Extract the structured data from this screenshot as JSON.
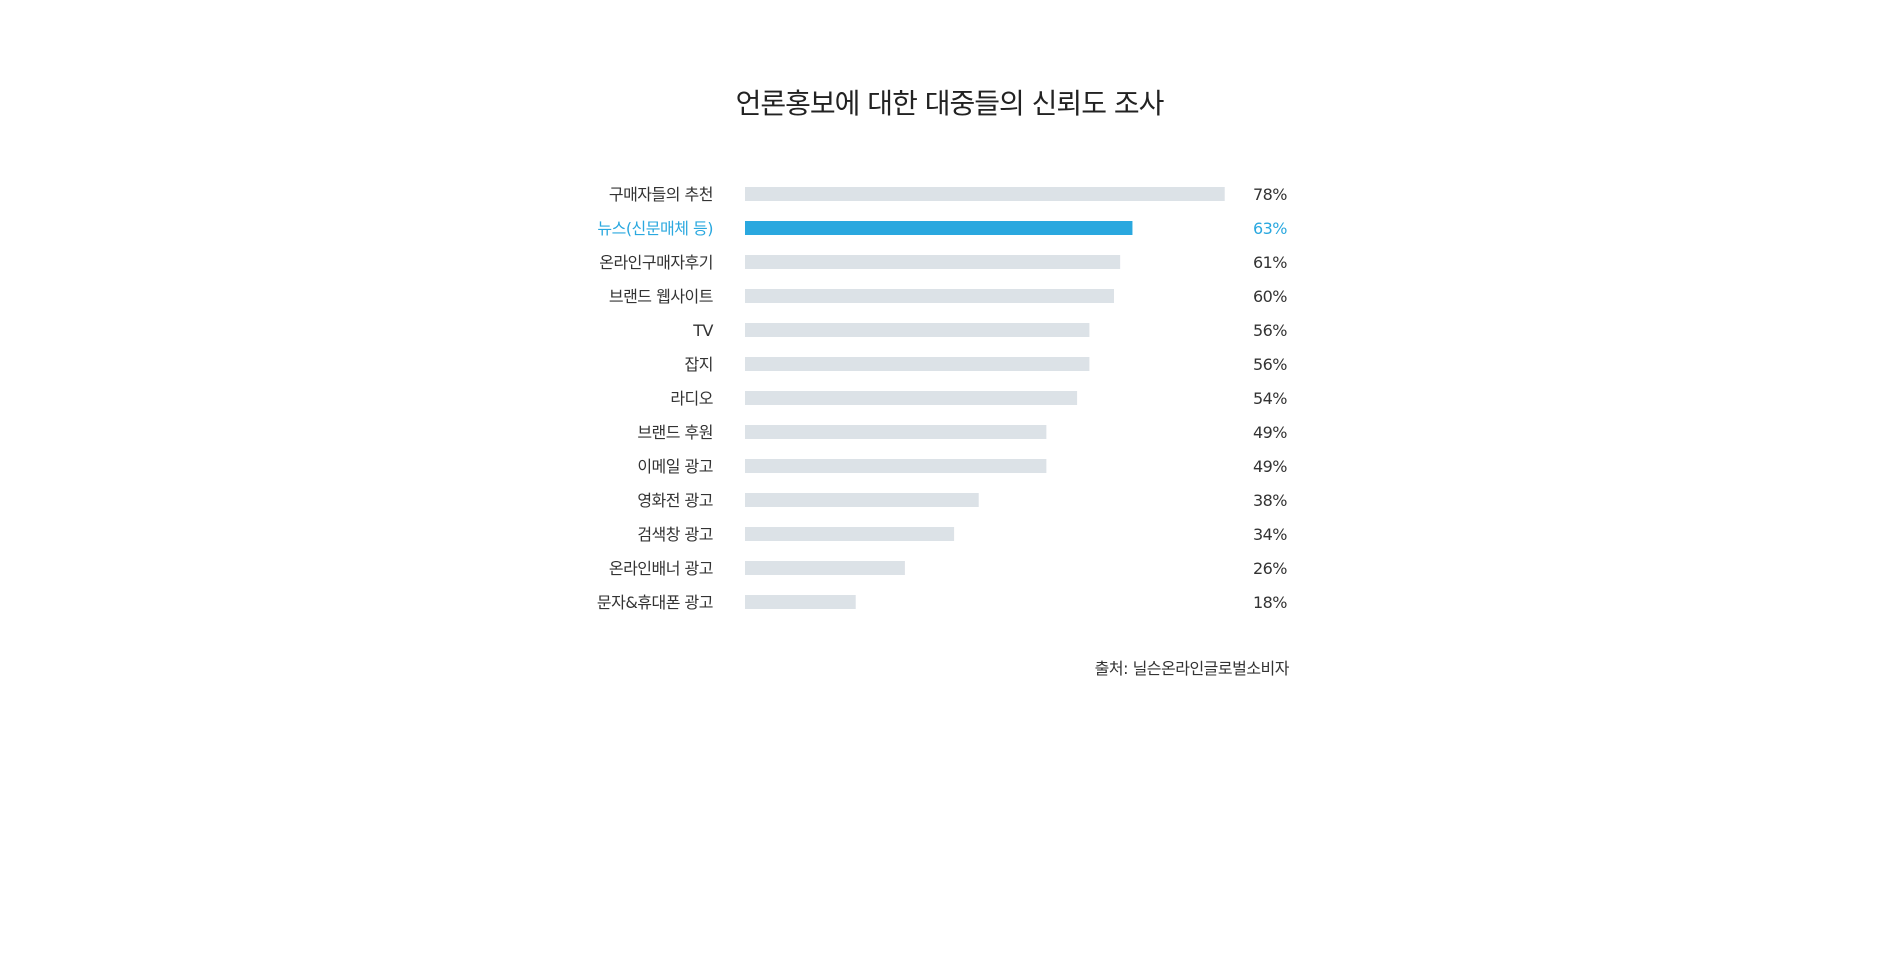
{
  "chart_data": {
    "type": "bar",
    "orientation": "horizontal",
    "title": "언론홍보에 대한 대중들의 신뢰도 조사",
    "categories": [
      "구매자들의 추천",
      "뉴스(신문매체 등)",
      "온라인구매자후기",
      "브랜드 웹사이트",
      "TV",
      "잡지",
      "라디오",
      "브랜드 후원",
      "이메일 광고",
      "영화전 광고",
      "검색창 광고",
      "온라인배너 광고",
      "문자&휴대폰 광고"
    ],
    "values": [
      78,
      63,
      61,
      60,
      56,
      56,
      54,
      49,
      49,
      38,
      34,
      26,
      18
    ],
    "value_labels": [
      "78%",
      "63%",
      "61%",
      "60%",
      "56%",
      "56%",
      "54%",
      "49%",
      "49%",
      "38%",
      "34%",
      "26%",
      "18%"
    ],
    "highlight_index": 1,
    "xlim": [
      0,
      100
    ],
    "grid": false,
    "legend": "none",
    "colors": {
      "bar": "#dce2e7",
      "highlight": "#2aa8df",
      "label": "#333333"
    }
  },
  "source": "출처: 닐슨온라인글로벌소비자"
}
